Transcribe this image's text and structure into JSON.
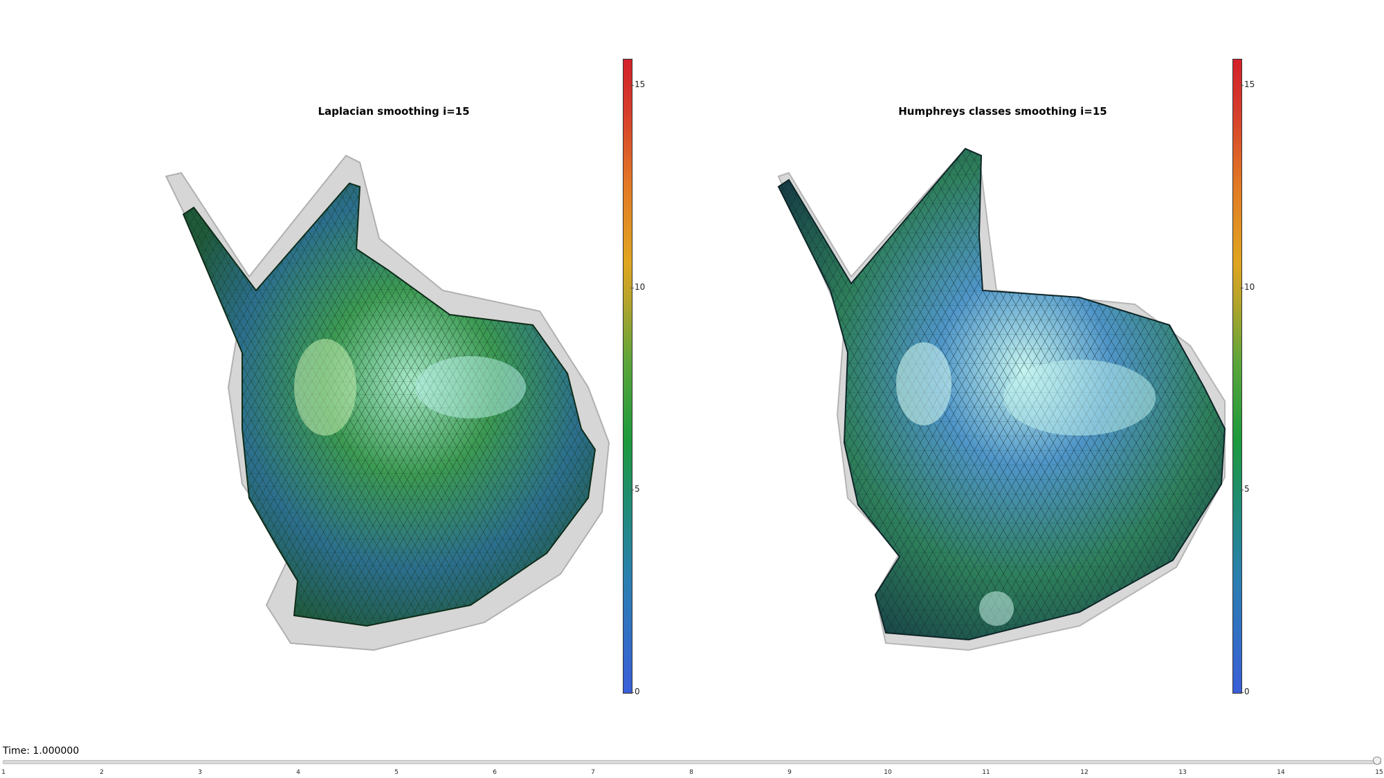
{
  "left_view": {
    "title": "Laplacian smoothing i=15",
    "colorbar_ticks": [
      "15",
      "10",
      "5",
      "0"
    ]
  },
  "right_view": {
    "title": "Humphreys classes smoothing i=15",
    "colorbar_ticks": [
      "15",
      "10",
      "5",
      "0"
    ]
  },
  "colors": {
    "mesh_green": "#2f8a3a",
    "mesh_blue": "#2f6aa8",
    "highlight": "#bff2e8",
    "ghost": "#c8c8c8"
  },
  "time_slider": {
    "label": "Time: 1.000000",
    "ticks": [
      "1",
      "2",
      "3",
      "4",
      "5",
      "6",
      "7",
      "8",
      "9",
      "10",
      "11",
      "12",
      "13",
      "14",
      "15"
    ],
    "value": 15
  }
}
